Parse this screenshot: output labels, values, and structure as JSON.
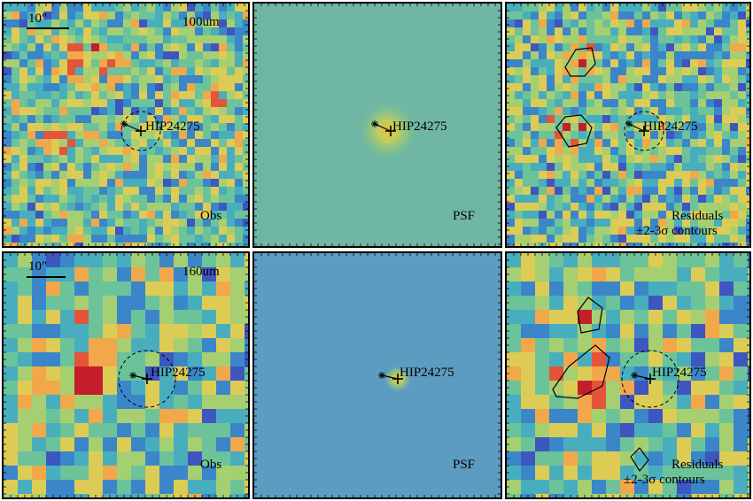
{
  "rows": [
    {
      "band": "100um",
      "scalebar": "10\"",
      "panels": [
        {
          "id": "obs",
          "corner_label": "Obs",
          "target": "HIP24275"
        },
        {
          "id": "psf",
          "corner_label": "PSF",
          "target": "HIP24275"
        },
        {
          "id": "res",
          "corner_label_line1": "Residuals",
          "corner_label_line2": "±2-3σ contours",
          "target": "HIP24275"
        }
      ]
    },
    {
      "band": "160um",
      "scalebar": "10\"",
      "panels": [
        {
          "id": "obs",
          "corner_label": "Obs",
          "target": "HIP24275"
        },
        {
          "id": "psf",
          "corner_label": "PSF",
          "target": "HIP24275"
        },
        {
          "id": "res",
          "corner_label_line1": "Residuals",
          "corner_label_line2": "±2-3σ contours",
          "target": "HIP24275"
        }
      ]
    }
  ],
  "colors": {
    "psf_bg_100": "#6fb7a4",
    "psf_bg_160": "#5b9cc0",
    "colormap": [
      "#3b1f8a",
      "#3d56c0",
      "#3a86c9",
      "#48aebd",
      "#6cc39a",
      "#a6cf72",
      "#dccc55",
      "#f0a84a",
      "#e4543a",
      "#c41e2a"
    ]
  }
}
